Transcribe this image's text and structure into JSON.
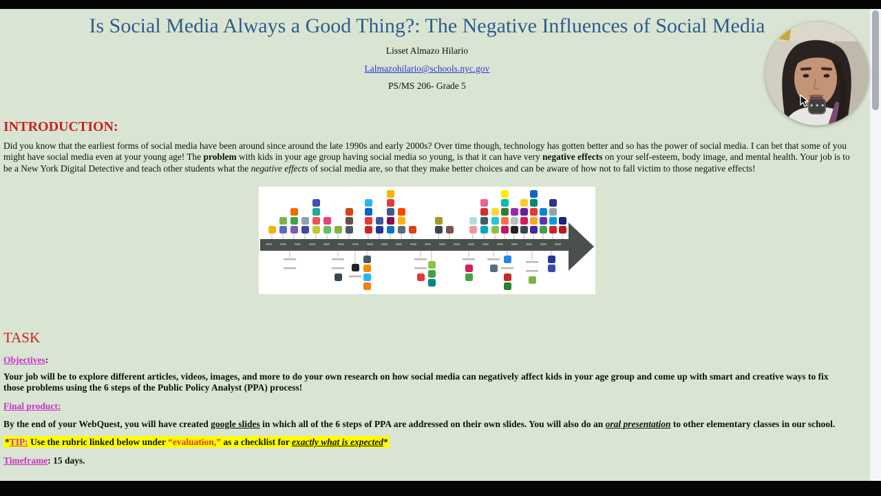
{
  "header": {
    "title": "Is Social Media Always a Good Thing?: The Negative Influences of Social Media",
    "author": "Lisset Almazo Hilario",
    "email": "Lalmazohilario@schools.nyc.gov",
    "school": "PS/MS 206- Grade 5"
  },
  "introduction": {
    "heading": "INTRODUCTION:",
    "p1": "Did you know that the earliest forms of social media have been around since around the late 1990s and early 2000s? Over time though, technology has gotten better and so has the power of social media. I can bet that some of you might have social media even at your young age! The ",
    "bold1": "problem",
    "p2": " with kids in your age group having social media so young, is that it can have very ",
    "bold2": "negative effects",
    "p3": " on your self-esteem, body image, and mental health. Your job is to be a New York Digital Detective and teach other students what the ",
    "italic1": "negative effects",
    "p4": " of social media are, so that they make better choices and can be aware of how not to fall victim to those negative effects!"
  },
  "task": {
    "heading": "TASK",
    "objectives": {
      "label": "Objectives",
      "colon": ":",
      "text": "Your job will be to explore different articles, videos, images, and more to do your own research on how social media can negatively affect kids in your age group and come up with smart and creative ways to fix those problems using the 6 steps of the Public Policy Analyst (PPA) process!"
    },
    "final_product": {
      "label": "Final product:",
      "s1": "By the end of your WebQuest, you will have created ",
      "s2": "google slides",
      "s3": " in which all of the 6 steps of PPA are addressed on their own slides. You will also do an ",
      "s4": "oral presentation",
      "s5": " to other elementary classes in our school."
    },
    "tip": {
      "s0": "*",
      "s1": "TIP:",
      "s2": " Use the rubric linked below under ",
      "s3": "“evaluation,”",
      "s4": " as a checklist for ",
      "s5": "exactly what is expected",
      "s6": "*"
    },
    "timeframe": {
      "label": "Timeframe",
      "text": ": 15 days."
    }
  },
  "icons": {
    "webcam_menu": "•••"
  },
  "colors": {
    "page_background": "#d9e5d2",
    "title_blue": "#2e5c8c",
    "heading_red": "#cd1f1f",
    "link_magenta": "#cb2ecb",
    "email_link_blue": "#2d35cd",
    "evaluation_red": "#e5352b",
    "tip_highlight": "#fdff00",
    "letterbox_black": "#050505",
    "timeline_band": "#4b504d"
  },
  "timeline_image": {
    "connector": "#bcbcbc",
    "caption_color": "#b9b9b9",
    "band_color": "#4b504d",
    "year_dash_color": "#72907c",
    "columns": [
      [
        14,
        "a",
        57,
        [
          "#f2b705"
        ]
      ],
      [
        30,
        "a",
        44,
        [
          "#7cb342",
          "#5c6bc0"
        ]
      ],
      [
        46,
        "a",
        31,
        [
          "#ef6c00",
          "#43a047",
          "#7e57c2"
        ]
      ],
      [
        62,
        "a",
        44,
        [
          "#90a4ae",
          "#3949ab"
        ]
      ],
      [
        78,
        "a",
        18,
        [
          "#3f51b5",
          "#26a69a",
          "#ef5350",
          "#c0ca33"
        ]
      ],
      [
        94,
        "a",
        44,
        [
          "#ec407a",
          "#66bb6a"
        ]
      ],
      [
        110,
        "a",
        57,
        [
          "#7cb342"
        ]
      ],
      [
        126,
        "a",
        31,
        [
          "#d84315",
          "#6d4c41",
          "#455a64"
        ]
      ],
      [
        154,
        "a",
        18,
        [
          "#29b6f6",
          "#0a66c2",
          "#e53935",
          "#c62828"
        ]
      ],
      [
        170,
        "a",
        44,
        [
          "#3b5998",
          "#283593"
        ]
      ],
      [
        186,
        "a",
        5,
        [
          "#f4b400",
          "#e53935",
          "#3b5998",
          "#880e4f",
          "#0277bd"
        ]
      ],
      [
        202,
        "a",
        31,
        [
          "#ff4500",
          "#ffb300",
          "#546e7a"
        ]
      ],
      [
        218,
        "a",
        57,
        [
          "#d84315"
        ]
      ],
      [
        256,
        "a",
        44,
        [
          "#9e9d24",
          "#37474f"
        ]
      ],
      [
        272,
        "a",
        57,
        [
          "#795548"
        ]
      ],
      [
        306,
        "a",
        44,
        [
          "#b2dfdb",
          "#ef9a9a"
        ]
      ],
      [
        322,
        "a",
        18,
        [
          "#f06292",
          "#d32f2f",
          "#455a64",
          "#00acc1"
        ]
      ],
      [
        338,
        "a",
        31,
        [
          "#fdd835",
          "#26c6da",
          "#8bc34a"
        ]
      ],
      [
        352,
        "a",
        5,
        [
          "#ffea00",
          "#00bfa5",
          "#2e7d32",
          "#ff7043",
          "#c2185b"
        ]
      ],
      [
        366,
        "a",
        31,
        [
          "#9c27b0",
          "#bdbdbd",
          "#212121"
        ]
      ],
      [
        380,
        "a",
        18,
        [
          "#ffca28",
          "#6a1b9a",
          "#d81b60",
          "#37474f"
        ]
      ],
      [
        394,
        "a",
        5,
        [
          "#1565c0",
          "#00897b",
          "#e53935",
          "#f9a825",
          "#4527a0"
        ]
      ],
      [
        408,
        "a",
        31,
        [
          "#0288d1",
          "#5e35b1",
          "#43a047"
        ]
      ],
      [
        422,
        "a",
        18,
        [
          "#283593",
          "#9e9e9e",
          "#039be5",
          "#c62828"
        ]
      ],
      [
        436,
        "a",
        44,
        [
          "#1a237e",
          "#b71c1c"
        ]
      ],
      [
        40,
        "b",
        100,
        [
          "dash",
          "dash"
        ]
      ],
      [
        110,
        "b",
        100,
        [
          "dash",
          "dash",
          "#37474f"
        ]
      ],
      [
        135,
        "b",
        112,
        [
          "#212121",
          "dash"
        ]
      ],
      [
        152,
        "b",
        100,
        [
          "#455a64",
          "#fb8c00",
          "#29b6f6",
          "#f57f17"
        ]
      ],
      [
        230,
        "b",
        100,
        [
          "dash",
          "dash",
          "#e53935"
        ]
      ],
      [
        246,
        "b",
        108,
        [
          "#8bc34a",
          "#43a047",
          "#00897b"
        ]
      ],
      [
        300,
        "b",
        100,
        [
          "dash",
          "#d81b60",
          "#43a047"
        ]
      ],
      [
        336,
        "b",
        100,
        [
          "dash",
          "#546e7a"
        ]
      ],
      [
        356,
        "b",
        100,
        [
          "#1e88e5",
          "dash",
          "#c62828",
          "#2e7d32"
        ]
      ],
      [
        392,
        "b",
        104,
        [
          "dash",
          "dash",
          "#7cb342"
        ]
      ],
      [
        420,
        "b",
        100,
        [
          "#283593",
          "#3949ab"
        ]
      ]
    ]
  }
}
